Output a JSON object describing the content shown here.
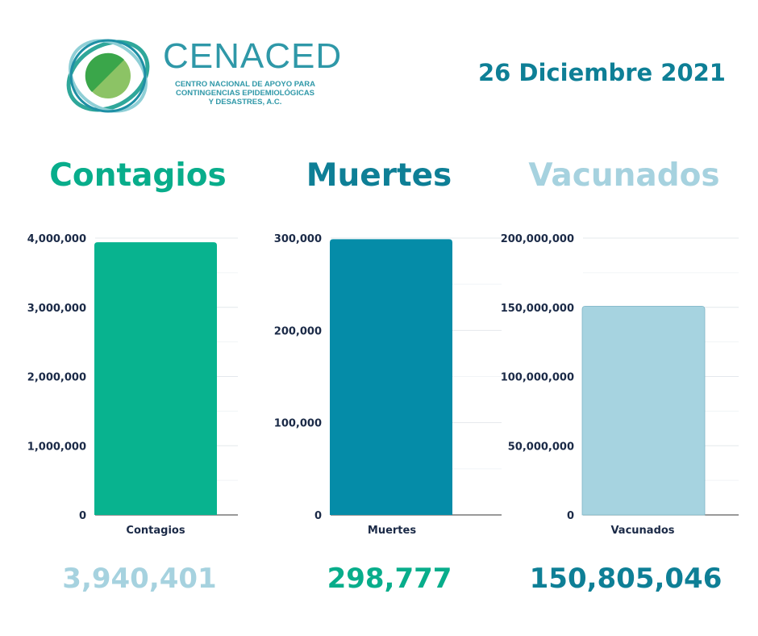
{
  "header": {
    "brand_name": "CENACED",
    "brand_subtitle_lines": [
      "CENTRO NACIONAL DE APOYO PARA",
      "CONTINGENCIAS EPIDEMIOLÓGICAS",
      "Y DESASTRES, A.C."
    ],
    "date": "26 Diciembre 2021"
  },
  "headings": [
    {
      "label": "Contagios",
      "color": "#08ad8b"
    },
    {
      "label": "Muertes",
      "color": "#0e7f96"
    },
    {
      "label": "Vacunados",
      "color": "#a6d2df"
    }
  ],
  "totals": [
    {
      "value": "3,940,401",
      "color": "#a6d2df"
    },
    {
      "value": "298,777",
      "color": "#08ad8b"
    },
    {
      "value": "150,805,046",
      "color": "#0e7f96"
    }
  ],
  "colors": {
    "contagios": "#08b38f",
    "muertes": "#058ca8",
    "vacunados": "#a6d3e0",
    "axis_text": "#1b2a47",
    "brand": "#2f98a8",
    "logo_green_dark": "#3aa64a",
    "logo_green_light": "#8cc365"
  },
  "chart_data": [
    {
      "type": "bar",
      "categories": [
        "Contagios"
      ],
      "values": [
        3940401
      ],
      "ylim": [
        0,
        4000000
      ],
      "yticks": [
        0,
        1000000,
        2000000,
        3000000,
        4000000
      ],
      "ytick_labels": [
        "0",
        "1,000,000",
        "2,000,000",
        "3,000,000",
        "4,000,000"
      ],
      "grid": true,
      "color": "#08b38f"
    },
    {
      "type": "bar",
      "categories": [
        "Muertes"
      ],
      "values": [
        298777
      ],
      "ylim": [
        0,
        300000
      ],
      "yticks": [
        0,
        100000,
        200000,
        300000
      ],
      "ytick_labels": [
        "0",
        "100,000",
        "200,000",
        "300,000"
      ],
      "grid": true,
      "color": "#058ca8"
    },
    {
      "type": "bar",
      "categories": [
        "Vacunados"
      ],
      "values": [
        150805046
      ],
      "ylim": [
        0,
        200000000
      ],
      "yticks": [
        0,
        50000000,
        100000000,
        150000000,
        200000000
      ],
      "ytick_labels": [
        "0",
        "50,000,000",
        "100,000,000",
        "150,000,000",
        "200,000,000"
      ],
      "grid": true,
      "color": "#a6d3e0"
    }
  ]
}
